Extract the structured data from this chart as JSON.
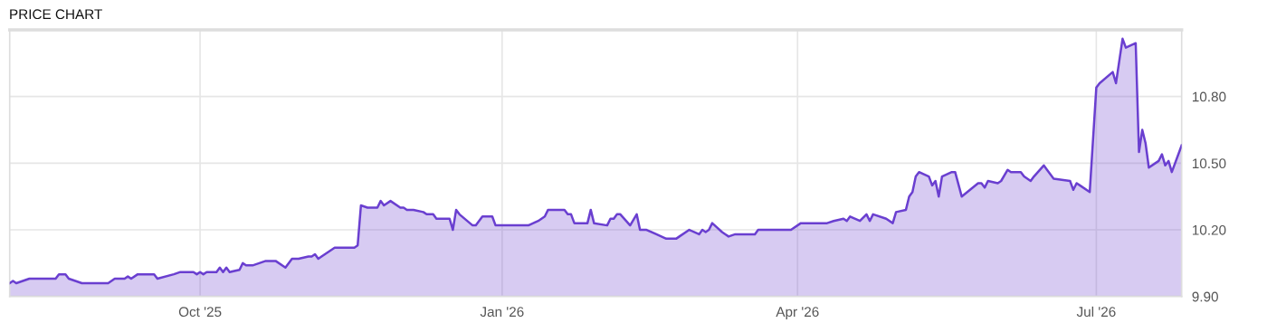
{
  "chart_data": {
    "type": "area",
    "title": "PRICE CHART",
    "x": [
      "2025-08-04",
      "2025-08-05",
      "2025-08-06",
      "2025-08-10",
      "2025-08-13",
      "2025-08-15",
      "2025-08-18",
      "2025-08-19",
      "2025-08-21",
      "2025-08-22",
      "2025-08-26",
      "2025-08-29",
      "2025-09-03",
      "2025-09-05",
      "2025-09-08",
      "2025-09-09",
      "2025-09-10",
      "2025-09-12",
      "2025-09-17",
      "2025-09-18",
      "2025-09-23",
      "2025-09-25",
      "2025-09-29",
      "2025-09-30",
      "2025-10-01",
      "2025-10-02",
      "2025-10-03",
      "2025-10-06",
      "2025-10-07",
      "2025-10-08",
      "2025-10-09",
      "2025-10-10",
      "2025-10-13",
      "2025-10-14",
      "2025-10-15",
      "2025-10-17",
      "2025-10-21",
      "2025-10-24",
      "2025-10-27",
      "2025-10-29",
      "2025-10-31",
      "2025-11-03",
      "2025-11-04",
      "2025-11-05",
      "2025-11-06",
      "2025-11-07",
      "2025-11-11",
      "2025-11-13",
      "2025-11-14",
      "2025-11-17",
      "2025-11-18",
      "2025-11-19",
      "2025-11-21",
      "2025-11-24",
      "2025-11-25",
      "2025-11-26",
      "2025-11-28",
      "2025-12-01",
      "2025-12-02",
      "2025-12-03",
      "2025-12-05",
      "2025-12-08",
      "2025-12-09",
      "2025-12-11",
      "2025-12-12",
      "2025-12-16",
      "2025-12-17",
      "2025-12-18",
      "2025-12-19",
      "2025-12-23",
      "2025-12-24",
      "2025-12-26",
      "2025-12-29",
      "2025-12-30",
      "2025-12-31",
      "2026-01-02",
      "2026-01-08",
      "2026-01-09",
      "2026-01-12",
      "2026-01-14",
      "2026-01-15",
      "2026-01-20",
      "2026-01-21",
      "2026-01-22",
      "2026-01-23",
      "2026-01-27",
      "2026-01-28",
      "2026-01-29",
      "2026-02-02",
      "2026-02-03",
      "2026-02-04",
      "2026-02-05",
      "2026-02-06",
      "2026-02-09",
      "2026-02-11",
      "2026-02-12",
      "2026-02-14",
      "2026-02-17",
      "2026-02-20",
      "2026-02-23",
      "2026-02-24",
      "2026-02-27",
      "2026-03-02",
      "2026-03-03",
      "2026-03-04",
      "2026-03-05",
      "2026-03-06",
      "2026-03-09",
      "2026-03-10",
      "2026-03-11",
      "2026-03-13",
      "2026-03-19",
      "2026-03-20",
      "2026-03-24",
      "2026-03-25",
      "2026-03-30",
      "2026-04-02",
      "2026-04-10",
      "2026-04-12",
      "2026-04-15",
      "2026-04-16",
      "2026-04-17",
      "2026-04-20",
      "2026-04-22",
      "2026-04-23",
      "2026-04-24",
      "2026-04-28",
      "2026-04-30",
      "2026-05-01",
      "2026-05-04",
      "2026-05-05",
      "2026-05-06",
      "2026-05-07",
      "2026-05-08",
      "2026-05-11",
      "2026-05-12",
      "2026-05-13",
      "2026-05-14",
      "2026-05-15",
      "2026-05-18",
      "2026-05-19",
      "2026-05-21",
      "2026-05-26",
      "2026-05-27",
      "2026-05-28",
      "2026-05-29",
      "2026-06-01",
      "2026-06-02",
      "2026-06-04",
      "2026-06-05",
      "2026-06-08",
      "2026-06-09",
      "2026-06-11",
      "2026-06-12",
      "2026-06-15",
      "2026-06-16",
      "2026-06-18",
      "2026-06-23",
      "2026-06-24",
      "2026-06-25",
      "2026-06-26",
      "2026-06-29",
      "2026-07-01",
      "2026-07-02",
      "2026-07-06",
      "2026-07-07",
      "2026-07-09",
      "2026-07-10",
      "2026-07-13",
      "2026-07-14",
      "2026-07-15",
      "2026-07-16",
      "2026-07-17",
      "2026-07-20",
      "2026-07-21",
      "2026-07-22",
      "2026-07-23",
      "2026-07-24",
      "2026-07-27"
    ],
    "series": [
      {
        "color": "#6a3fd0",
        "values": [
          9.96,
          9.97,
          9.96,
          9.98,
          9.98,
          9.98,
          9.98,
          10.0,
          10.0,
          9.98,
          9.96,
          9.96,
          9.96,
          9.98,
          9.98,
          9.99,
          9.98,
          10.0,
          10.0,
          9.98,
          10.0,
          10.01,
          10.01,
          10.0,
          10.01,
          10.0,
          10.01,
          10.01,
          10.03,
          10.01,
          10.03,
          10.01,
          10.02,
          10.05,
          10.04,
          10.04,
          10.06,
          10.06,
          10.03,
          10.07,
          10.07,
          10.08,
          10.08,
          10.09,
          10.07,
          10.08,
          10.12,
          10.12,
          10.12,
          10.12,
          10.13,
          10.31,
          10.3,
          10.3,
          10.33,
          10.31,
          10.33,
          10.3,
          10.3,
          10.29,
          10.29,
          10.28,
          10.27,
          10.27,
          10.25,
          10.25,
          10.2,
          10.29,
          10.27,
          10.22,
          10.22,
          10.26,
          10.26,
          10.22,
          10.22,
          10.22,
          10.22,
          10.22,
          10.24,
          10.26,
          10.29,
          10.29,
          10.27,
          10.27,
          10.23,
          10.23,
          10.29,
          10.23,
          10.22,
          10.25,
          10.25,
          10.27,
          10.27,
          10.22,
          10.27,
          10.2,
          10.2,
          10.18,
          10.16,
          10.16,
          10.17,
          10.2,
          10.18,
          10.2,
          10.19,
          10.2,
          10.23,
          10.19,
          10.18,
          10.17,
          10.18,
          10.18,
          10.2,
          10.2,
          10.2,
          10.2,
          10.23,
          10.23,
          10.24,
          10.25,
          10.24,
          10.26,
          10.24,
          10.27,
          10.24,
          10.27,
          10.25,
          10.23,
          10.28,
          10.29,
          10.35,
          10.37,
          10.44,
          10.46,
          10.44,
          10.4,
          10.42,
          10.35,
          10.44,
          10.46,
          10.46,
          10.35,
          10.41,
          10.41,
          10.39,
          10.42,
          10.41,
          10.42,
          10.47,
          10.46,
          10.46,
          10.44,
          10.42,
          10.44,
          10.49,
          10.47,
          10.43,
          10.42,
          10.38,
          10.41,
          10.4,
          10.37,
          10.84,
          10.86,
          10.91,
          10.86,
          11.06,
          11.02,
          11.04,
          10.55,
          10.65,
          10.59,
          10.48,
          10.51,
          10.54,
          10.49,
          10.51,
          10.46,
          10.58
        ]
      }
    ],
    "xlim": [
      "2025-08-04",
      "2026-07-27"
    ],
    "xticks": [
      {
        "value": "2025-10-01",
        "label": "Oct '25"
      },
      {
        "value": "2026-01-01",
        "label": "Jan '26"
      },
      {
        "value": "2026-04-01",
        "label": "Apr '26"
      },
      {
        "value": "2026-07-01",
        "label": "Jul '26"
      }
    ],
    "ylim": [
      9.9,
      11.1
    ],
    "yticks": [
      {
        "value": 9.9,
        "label": "9.90"
      },
      {
        "value": 10.2,
        "label": "10.20"
      },
      {
        "value": 10.5,
        "label": "10.50"
      },
      {
        "value": 10.8,
        "label": "10.80"
      }
    ],
    "grid": true,
    "legend": false,
    "marker": "none",
    "line_style": "solid"
  }
}
